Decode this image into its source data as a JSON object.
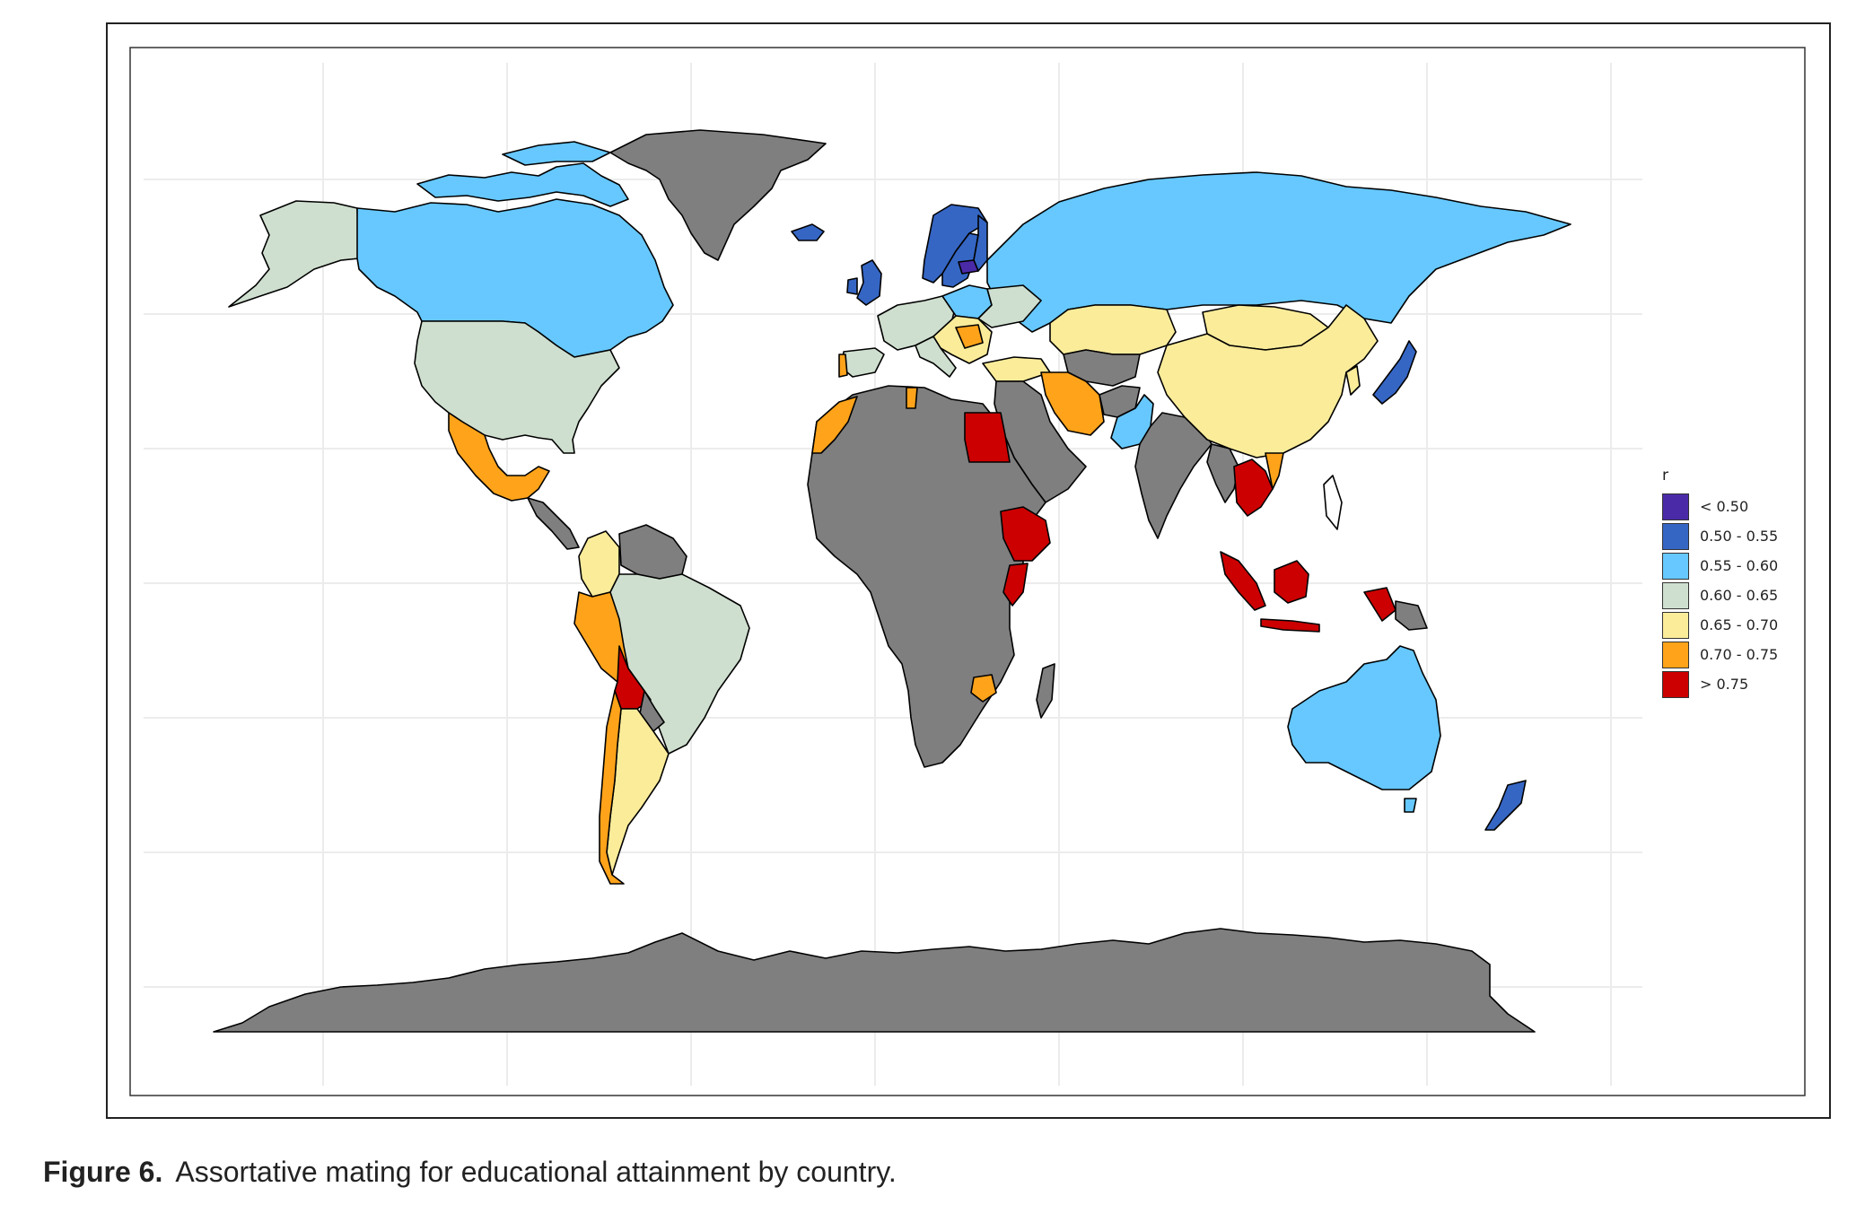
{
  "legend": {
    "title": "r",
    "items": [
      {
        "label": "< 0.50",
        "color": "#4b2aa8"
      },
      {
        "label": "0.50 - 0.55",
        "color": "#3566c4"
      },
      {
        "label": "0.55 - 0.60",
        "color": "#66c8ff"
      },
      {
        "label": "0.60 - 0.65",
        "color": "#cfdfcf"
      },
      {
        "label": "0.65 - 0.70",
        "color": "#fbec9a"
      },
      {
        "label": "0.70 - 0.75",
        "color": "#ffa31a"
      },
      {
        "label": "> 0.75",
        "color": "#cc0000"
      }
    ]
  },
  "no_data_color": "#7f7f7f",
  "caption": {
    "label": "Figure 6.",
    "text": "Assortative mating for educational attainment by country."
  },
  "countries": [
    {
      "name": "Canada",
      "class": "0.55 - 0.60"
    },
    {
      "name": "United States",
      "class": "0.60 - 0.65"
    },
    {
      "name": "Alaska",
      "class": "0.60 - 0.65"
    },
    {
      "name": "Greenland",
      "class": "no data"
    },
    {
      "name": "Mexico",
      "class": "0.70 - 0.75"
    },
    {
      "name": "Colombia",
      "class": "0.65 - 0.70"
    },
    {
      "name": "Venezuela",
      "class": "no data"
    },
    {
      "name": "Brazil",
      "class": "0.60 - 0.65"
    },
    {
      "name": "Peru",
      "class": "0.70 - 0.75"
    },
    {
      "name": "Bolivia",
      "class": "> 0.75"
    },
    {
      "name": "Argentina",
      "class": "0.65 - 0.70"
    },
    {
      "name": "Chile",
      "class": "0.70 - 0.75"
    },
    {
      "name": "Russia",
      "class": "0.55 - 0.60"
    },
    {
      "name": "Norway",
      "class": "0.50 - 0.55"
    },
    {
      "name": "Finland",
      "class": "0.50 - 0.55"
    },
    {
      "name": "United Kingdom",
      "class": "0.50 - 0.55"
    },
    {
      "name": "Latvia",
      "class": "< 0.50"
    },
    {
      "name": "China",
      "class": "0.65 - 0.70"
    },
    {
      "name": "Mongolia",
      "class": "0.65 - 0.70"
    },
    {
      "name": "Kazakhstan",
      "class": "0.65 - 0.70"
    },
    {
      "name": "Iran",
      "class": "0.70 - 0.75"
    },
    {
      "name": "Pakistan",
      "class": "0.55 - 0.60"
    },
    {
      "name": "India",
      "class": "no data"
    },
    {
      "name": "Japan",
      "class": "0.50 - 0.55"
    },
    {
      "name": "Thailand",
      "class": "> 0.75"
    },
    {
      "name": "Indonesia",
      "class": "> 0.75"
    },
    {
      "name": "Egypt",
      "class": "> 0.75"
    },
    {
      "name": "Ethiopia",
      "class": "> 0.75"
    },
    {
      "name": "Morocco",
      "class": "0.70 - 0.75"
    },
    {
      "name": "Australia",
      "class": "0.55 - 0.60"
    },
    {
      "name": "New Zealand",
      "class": "0.50 - 0.55"
    },
    {
      "name": "Antarctica",
      "class": "no data"
    }
  ]
}
